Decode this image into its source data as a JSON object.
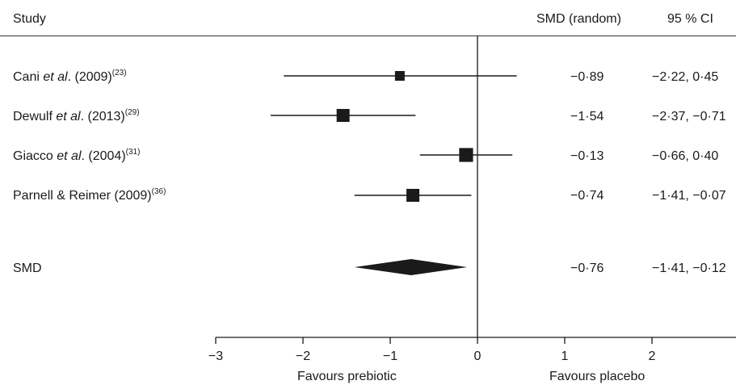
{
  "header": {
    "study_label": "Study",
    "smd_label": "SMD (random)",
    "ci_label": "95 % CI"
  },
  "studies": [
    {
      "author": "Cani ",
      "etal": "et al",
      "year": ". (2009)",
      "ref": "(23)",
      "smd_text": "−0·89",
      "ci_text": "−2·22, 0·45"
    },
    {
      "author": "Dewulf ",
      "etal": "et al",
      "year": ". (2013)",
      "ref": "(29)",
      "smd_text": "−1·54",
      "ci_text": "−2·37, −0·71"
    },
    {
      "author": "Giacco ",
      "etal": "et al",
      "year": ". (2004)",
      "ref": "(31)",
      "smd_text": "−0·13",
      "ci_text": "−0·66, 0·40"
    },
    {
      "author": "Parnell & Reimer (2009)",
      "etal": "",
      "year": "",
      "ref": "(36)",
      "smd_text": "−0·74",
      "ci_text": "−1·41, −0·07"
    }
  ],
  "summary": {
    "label": "SMD",
    "smd_text": "−0·76",
    "ci_text": "−1·41, −0·12"
  },
  "axis": {
    "tick_labels": [
      "−3",
      "−2",
      "−1",
      "0",
      "1",
      "2",
      "3"
    ],
    "left_caption": "Favours prebiotic",
    "right_caption": "Favours placebo"
  },
  "chart_data": {
    "type": "forest",
    "xlim": [
      -3,
      3
    ],
    "ticks": [
      -3,
      -2,
      -1,
      0,
      1,
      2,
      3
    ],
    "studies": [
      {
        "name": "Cani et al. (2009)",
        "smd": -0.89,
        "ci": [
          -2.22,
          0.45
        ],
        "weight": 0.5
      },
      {
        "name": "Dewulf et al. (2013)",
        "smd": -1.54,
        "ci": [
          -2.37,
          -0.71
        ],
        "weight": 1.0
      },
      {
        "name": "Giacco et al. (2004)",
        "smd": -0.13,
        "ci": [
          -0.66,
          0.4
        ],
        "weight": 1.15
      },
      {
        "name": "Parnell & Reimer (2009)",
        "smd": -0.74,
        "ci": [
          -1.41,
          -0.07
        ],
        "weight": 1.0
      }
    ],
    "pooled": {
      "name": "SMD",
      "smd": -0.76,
      "ci": [
        -1.41,
        -0.12
      ]
    },
    "colors": {
      "marker": "#1a1a1a",
      "line": "#1a1a1a"
    }
  }
}
